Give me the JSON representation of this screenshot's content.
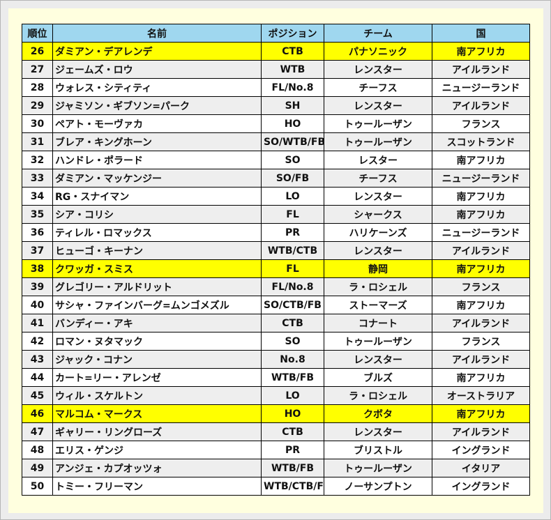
{
  "headers": [
    "順位",
    "名前",
    "ポジション",
    "チーム",
    "国"
  ],
  "highlight_color": "#ffff00",
  "header_color": "#9fd7ef",
  "rows": [
    {
      "rank": "26",
      "name": "ダミアン・デアレンデ",
      "position": "CTB",
      "team": "パナソニック",
      "country": "南アフリカ",
      "highlight": true
    },
    {
      "rank": "27",
      "name": "ジェームズ・ロウ",
      "position": "WTB",
      "team": "レンスター",
      "country": "アイルランド"
    },
    {
      "rank": "28",
      "name": "ウォレス・シティティ",
      "position": "FL/No.8",
      "team": "チーフス",
      "country": "ニュージーランド"
    },
    {
      "rank": "29",
      "name": "ジャミソン・ギブソン=パーク",
      "position": "SH",
      "team": "レンスター",
      "country": "アイルランド"
    },
    {
      "rank": "30",
      "name": "ペアト・モーヴァカ",
      "position": "HO",
      "team": "トゥールーザン",
      "country": "フランス"
    },
    {
      "rank": "31",
      "name": "ブレア・キングホーン",
      "position": "SO/WTB/FB",
      "team": "トゥールーザン",
      "country": "スコットランド"
    },
    {
      "rank": "32",
      "name": "ハンドレ・ポラード",
      "position": "SO",
      "team": "レスター",
      "country": "南アフリカ"
    },
    {
      "rank": "33",
      "name": "ダミアン・マッケンジー",
      "position": "SO/FB",
      "team": "チーフス",
      "country": "ニュージーランド"
    },
    {
      "rank": "34",
      "name": "RG・スナイマン",
      "position": "LO",
      "team": "レンスター",
      "country": "南アフリカ"
    },
    {
      "rank": "35",
      "name": "シア・コリシ",
      "position": "FL",
      "team": "シャークス",
      "country": "南アフリカ"
    },
    {
      "rank": "36",
      "name": "ティレル・ロマックス",
      "position": "PR",
      "team": "ハリケーンズ",
      "country": "ニュージーランド"
    },
    {
      "rank": "37",
      "name": "ヒューゴ・キーナン",
      "position": "WTB/CTB",
      "team": "レンスター",
      "country": "アイルランド"
    },
    {
      "rank": "38",
      "name": "クワッガ・スミス",
      "position": "FL",
      "team": "静岡",
      "country": "南アフリカ",
      "highlight": true
    },
    {
      "rank": "39",
      "name": "グレゴリー・アルドリット",
      "position": "FL/No.8",
      "team": "ラ・ロシェル",
      "country": "フランス"
    },
    {
      "rank": "40",
      "name": "サシャ・ファインバーグ=ムンゴメズル",
      "position": "SO/CTB/FB",
      "team": "ストーマーズ",
      "country": "南アフリカ"
    },
    {
      "rank": "41",
      "name": "バンディー・アキ",
      "position": "CTB",
      "team": "コナート",
      "country": "アイルランド"
    },
    {
      "rank": "42",
      "name": "ロマン・ヌタマック",
      "position": "SO",
      "team": "トゥールーザン",
      "country": "フランス"
    },
    {
      "rank": "43",
      "name": "ジャック・コナン",
      "position": "No.8",
      "team": "レンスター",
      "country": "アイルランド"
    },
    {
      "rank": "44",
      "name": "カート=リー・アレンゼ",
      "position": "WTB/FB",
      "team": "ブルズ",
      "country": "南アフリカ"
    },
    {
      "rank": "45",
      "name": "ウィル・スケルトン",
      "position": "LO",
      "team": "ラ・ロシェル",
      "country": "オーストラリア"
    },
    {
      "rank": "46",
      "name": "マルコム・マークス",
      "position": "HO",
      "team": "クボタ",
      "country": "南アフリカ",
      "highlight": true
    },
    {
      "rank": "47",
      "name": "ギャリー・リングローズ",
      "position": "CTB",
      "team": "レンスター",
      "country": "アイルランド"
    },
    {
      "rank": "48",
      "name": "エリス・ゲンジ",
      "position": "PR",
      "team": "ブリストル",
      "country": "イングランド"
    },
    {
      "rank": "49",
      "name": "アンジェ・カプオッツォ",
      "position": "WTB/FB",
      "team": "トゥールーザン",
      "country": "イタリア"
    },
    {
      "rank": "50",
      "name": "トミー・フリーマン",
      "position": "WTB/CTB/FB",
      "team": "ノーサンプトン",
      "country": "イングランド"
    }
  ]
}
